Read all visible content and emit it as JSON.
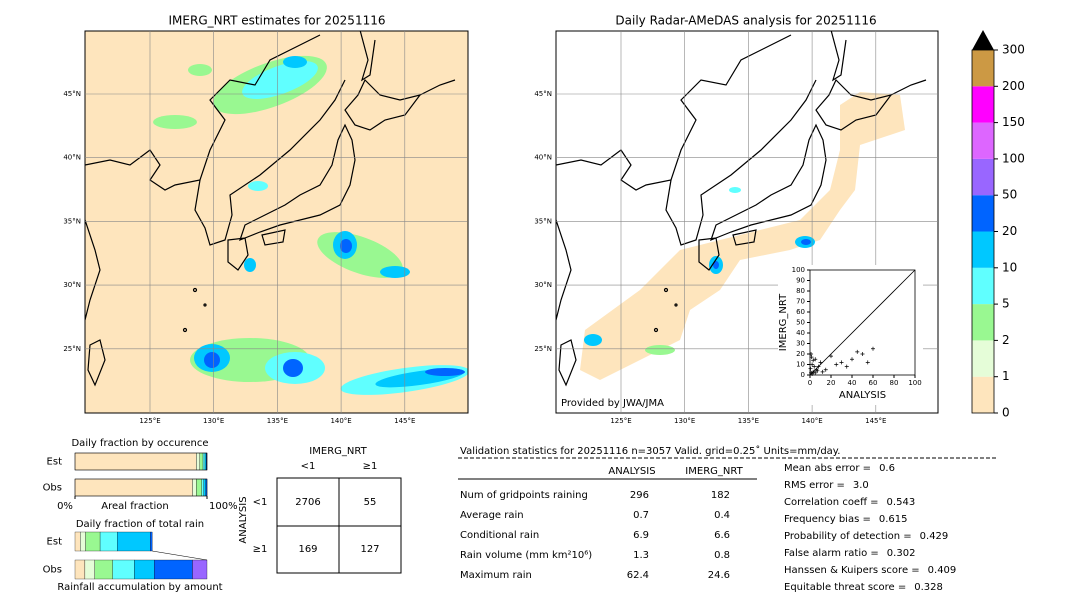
{
  "maps": [
    {
      "title": "IMERG_NRT estimates for 20251116",
      "lat_labels": [
        "45°N",
        "40°N",
        "35°N",
        "30°N",
        "25°N"
      ],
      "lon_labels": [
        "125°E",
        "130°E",
        "135°E",
        "140°E",
        "145°E"
      ]
    },
    {
      "title": "Daily Radar-AMeDAS analysis for 20251116",
      "lat_labels": [
        "45°N",
        "40°N",
        "35°N",
        "30°N",
        "25°N"
      ],
      "lon_labels": [
        "125°E",
        "130°E",
        "135°E",
        "140°E",
        "145°E"
      ],
      "credit": "Provided by JWA/JMA"
    }
  ],
  "chart_data": [
    {
      "type": "colorbar",
      "ticks": [
        0,
        1,
        2,
        5,
        10,
        20,
        50,
        100,
        150,
        200,
        300
      ],
      "colors": [
        "#fee5bd",
        "#e5fdd8",
        "#99f891",
        "#60ffff",
        "#00c8ff",
        "#0064ff",
        "#9966ff",
        "#dd66ff",
        "#ff00ff",
        "#cc9944"
      ],
      "over_color": "#000000"
    },
    {
      "type": "scatter",
      "xlabel": "ANALYSIS",
      "ylabel": "IMERG_NRT",
      "color": "#000000",
      "x": [
        1,
        2,
        3,
        4,
        5,
        6,
        8,
        10,
        12,
        15,
        20,
        25,
        30,
        35,
        40,
        45,
        50,
        55,
        60,
        2,
        1,
        3,
        5,
        7,
        0.5,
        1.5
      ],
      "y": [
        20,
        10,
        3,
        8,
        15,
        5,
        8,
        12,
        3,
        5,
        18,
        10,
        12,
        8,
        15,
        22,
        20,
        12,
        25,
        1,
        2,
        14,
        2,
        4,
        6,
        17
      ],
      "xlim": [
        0,
        100
      ],
      "ylim": [
        0,
        100
      ],
      "xticks": [
        0,
        20,
        40,
        60,
        80,
        100
      ],
      "yticks": [
        0,
        10,
        20,
        30,
        40,
        50,
        60,
        70,
        80,
        90,
        100
      ]
    },
    {
      "type": "stacked_barh",
      "title": "Daily fraction by occurence",
      "categories": [
        "Est",
        "Obs"
      ],
      "xlabel": "Areal fraction",
      "xlim": [
        0,
        100
      ],
      "xticks": [
        {
          "value": 0,
          "label": "0%"
        },
        {
          "value": 100,
          "label": "100%"
        }
      ],
      "series": [
        {
          "color": "#fee5bd",
          "values": [
            92,
            89
          ]
        },
        {
          "color": "#e5fdd8",
          "values": [
            2.5,
            3
          ]
        },
        {
          "color": "#99f891",
          "values": [
            2.5,
            4
          ]
        },
        {
          "color": "#60ffff",
          "values": [
            1.5,
            1.5
          ]
        },
        {
          "color": "#00c8ff",
          "values": [
            1,
            1.5
          ]
        },
        {
          "color": "#0064ff",
          "values": [
            0.5,
            1
          ]
        }
      ]
    },
    {
      "type": "stacked_barh",
      "title": "Daily fraction of total rain",
      "categories": [
        "Est",
        "Obs"
      ],
      "xlabel": "Rainfall accumulation by amount",
      "xlim": [
        0,
        100
      ],
      "series": [
        {
          "color": "#fee5bd",
          "values": [
            4,
            7.5
          ]
        },
        {
          "color": "#e5fdd8",
          "values": [
            4,
            7.5
          ]
        },
        {
          "color": "#99f891",
          "values": [
            11,
            13.5
          ]
        },
        {
          "color": "#60ffff",
          "values": [
            13,
            16.5
          ]
        },
        {
          "color": "#00c8ff",
          "values": [
            25,
            15
          ]
        },
        {
          "color": "#0064ff",
          "values": [
            1.5,
            29
          ]
        },
        {
          "color": "#9966ff",
          "values": [
            0,
            11
          ]
        }
      ]
    }
  ],
  "contingency": {
    "title": "IMERG_NRT",
    "columns": [
      "<1",
      "≥1"
    ],
    "side_label": "ANALYSIS",
    "rows": [
      {
        "label": "<1",
        "cells": [
          2706,
          55
        ]
      },
      {
        "label": "≥1",
        "cells": [
          169,
          127
        ]
      }
    ]
  },
  "stats": {
    "title": "Validation statistics for 20251116  n=3057 Valid. grid=0.25˚ Units=mm/day.",
    "columns": [
      "ANALYSIS",
      "IMERG_NRT"
    ],
    "rows": [
      {
        "label": "Num of gridpoints raining",
        "values": [
          296,
          182
        ]
      },
      {
        "label": "Average rain",
        "values": [
          0.7,
          0.4
        ]
      },
      {
        "label": "Conditional rain",
        "values": [
          6.9,
          6.6
        ]
      },
      {
        "label": "Rain volume (mm km²10⁶)",
        "values": [
          1.3,
          0.8
        ]
      },
      {
        "label": "Maximum rain",
        "values": [
          62.4,
          24.6
        ]
      }
    ],
    "scores": [
      {
        "label": "Mean abs error =",
        "value": 0.6
      },
      {
        "label": "RMS error =",
        "value": "3.0"
      },
      {
        "label": "Correlation coeff =",
        "value": 0.543
      },
      {
        "label": "Frequency bias =",
        "value": 0.615
      },
      {
        "label": "Probability of detection =",
        "value": 0.429
      },
      {
        "label": "False alarm ratio =",
        "value": 0.302
      },
      {
        "label": "Hanssen & Kuipers score =",
        "value": 0.409
      },
      {
        "label": "Equitable threat score =",
        "value": 0.328
      }
    ]
  }
}
